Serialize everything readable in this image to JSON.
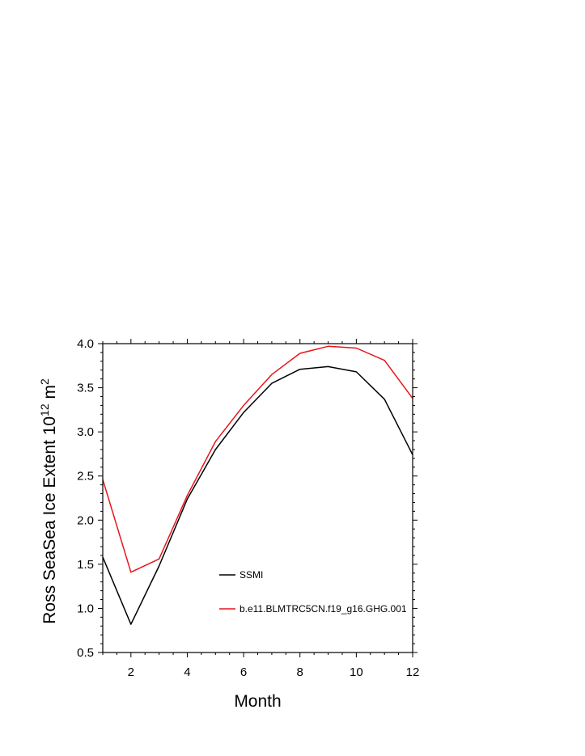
{
  "chart_data": {
    "type": "line",
    "title": "",
    "xlabel": "Month",
    "ylabel_main": "Ross SeaSea Ice Extent 10",
    "ylabel_exp": "12",
    "ylabel_unit": " m",
    "ylabel_unit_exp": "2",
    "xlim": [
      1,
      12
    ],
    "ylim": [
      0.5,
      4.0
    ],
    "xticks": [
      2,
      4,
      6,
      8,
      10,
      12
    ],
    "yticks": [
      0.5,
      1.0,
      1.5,
      2.0,
      2.5,
      3.0,
      3.5,
      4.0
    ],
    "ytick_labels": [
      "0.5",
      "1.0",
      "1.5",
      "2.0",
      "2.5",
      "3.0",
      "3.5",
      "4.0"
    ],
    "x": [
      1,
      2,
      3,
      4,
      5,
      6,
      7,
      8,
      9,
      10,
      11,
      12
    ],
    "series": [
      {
        "name": "SSMI",
        "color": "#000000",
        "values": [
          1.58,
          0.82,
          1.48,
          2.24,
          2.8,
          3.22,
          3.55,
          3.71,
          3.74,
          3.68,
          3.37,
          2.74
        ]
      },
      {
        "name": "b.e11.BLMTRC5CN.f19_g16.GHG.001",
        "color": "#e8141c",
        "values": [
          2.46,
          1.41,
          1.56,
          2.28,
          2.89,
          3.3,
          3.65,
          3.89,
          3.97,
          3.95,
          3.81,
          3.38
        ]
      }
    ],
    "legend_placement": "inside-lower-right",
    "grid": false
  }
}
